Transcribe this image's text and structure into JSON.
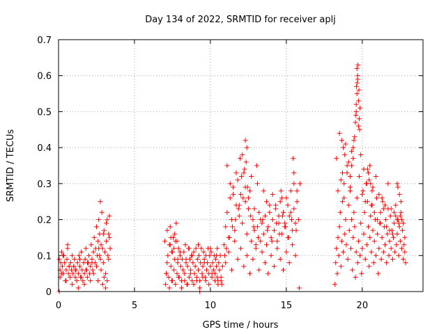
{
  "chart_data": {
    "type": "scatter",
    "title": "Day 134 of 2022, SRMTID for receiver aplj",
    "xlabel": "GPS time / hours",
    "ylabel": "SRMTID / TECUs",
    "xlim": [
      0,
      24
    ],
    "ylim": [
      0,
      0.7
    ],
    "xticks": [
      0,
      5,
      10,
      15,
      20
    ],
    "xtick_labels": [
      "0",
      "5",
      "10",
      "15",
      "20"
    ],
    "yticks": [
      0,
      0.1,
      0.2,
      0.3,
      0.4,
      0.5,
      0.6,
      0.7
    ],
    "ytick_labels": [
      "0",
      "0.1",
      "0.2",
      "0.3",
      "0.4",
      "0.5",
      "0.6",
      "0.7"
    ],
    "grid": true,
    "marker": "+",
    "color": "#ff0000",
    "series": [
      {
        "name": "SRMTID",
        "x": [
          0.05,
          0.1,
          0.15,
          0.2,
          0.25,
          0.3,
          0.35,
          0.4,
          0.45,
          0.5,
          0.55,
          0.6,
          0.65,
          0.7,
          0.75,
          0.8,
          0.85,
          0.9,
          0.95,
          1.0,
          1.05,
          1.1,
          1.15,
          1.2,
          1.25,
          1.3,
          1.35,
          1.4,
          1.45,
          1.5,
          1.55,
          1.6,
          1.65,
          1.7,
          1.75,
          1.8,
          1.85,
          1.9,
          1.95,
          2.0,
          2.05,
          2.1,
          2.15,
          2.2,
          2.25,
          2.3,
          2.35,
          2.4,
          2.45,
          2.5,
          2.55,
          2.6,
          2.65,
          2.7,
          2.75,
          2.8,
          2.85,
          2.9,
          2.95,
          3.0,
          3.05,
          3.1,
          3.15,
          3.2,
          3.25,
          3.3,
          3.35,
          3.4,
          0.1,
          0.3,
          0.5,
          0.7,
          0.9,
          1.1,
          1.3,
          1.5,
          1.7,
          1.9,
          2.1,
          2.3,
          2.5,
          2.6,
          2.7,
          2.8,
          2.9,
          3.0,
          3.1,
          3.2,
          3.3,
          0.2,
          0.6,
          1.0,
          1.4,
          1.8,
          2.2,
          2.65,
          2.75,
          2.95,
          3.15,
          3.35,
          7.0,
          7.05,
          7.1,
          7.15,
          7.2,
          7.25,
          7.3,
          7.35,
          7.4,
          7.45,
          7.5,
          7.55,
          7.6,
          7.65,
          7.7,
          7.75,
          7.8,
          7.85,
          7.9,
          7.95,
          8.0,
          8.05,
          8.1,
          8.15,
          8.2,
          8.25,
          8.3,
          8.35,
          8.4,
          8.45,
          8.5,
          8.55,
          8.6,
          8.65,
          8.7,
          8.75,
          8.8,
          8.85,
          8.9,
          8.95,
          9.0,
          9.05,
          9.1,
          9.15,
          9.2,
          9.25,
          9.3,
          9.35,
          9.4,
          9.45,
          9.5,
          9.55,
          9.6,
          9.65,
          9.7,
          9.75,
          9.8,
          9.85,
          9.9,
          9.95,
          10.0,
          10.05,
          10.1,
          10.15,
          10.2,
          10.25,
          10.3,
          10.35,
          10.4,
          10.45,
          10.5,
          10.55,
          10.6,
          10.65,
          10.7,
          10.75,
          10.8,
          7.1,
          7.3,
          7.5,
          7.7,
          7.9,
          8.1,
          8.3,
          8.5,
          8.7,
          8.9,
          9.1,
          9.3,
          9.5,
          9.7,
          9.9,
          10.1,
          10.3,
          10.5,
          10.7,
          7.4,
          7.6,
          7.8,
          8.0,
          8.4,
          8.8,
          9.2,
          9.6,
          10.0,
          10.4,
          7.15,
          7.35,
          7.45,
          7.65,
          7.85,
          8.6,
          10.9,
          11.0,
          11.1,
          11.2,
          11.3,
          11.4,
          11.5,
          11.6,
          11.7,
          11.8,
          11.9,
          12.0,
          12.1,
          12.2,
          12.3,
          12.4,
          12.5,
          12.6,
          12.7,
          12.8,
          12.9,
          13.0,
          13.1,
          13.2,
          13.3,
          13.4,
          13.5,
          13.6,
          13.7,
          13.8,
          13.9,
          14.0,
          14.1,
          14.2,
          14.3,
          14.4,
          14.5,
          14.6,
          14.7,
          14.8,
          14.9,
          15.0,
          15.1,
          15.2,
          15.3,
          15.4,
          15.5,
          15.6,
          15.7,
          15.8,
          11.0,
          11.2,
          11.4,
          11.6,
          11.8,
          12.0,
          12.2,
          12.4,
          12.6,
          12.8,
          13.0,
          13.2,
          13.4,
          13.6,
          13.8,
          14.0,
          14.2,
          14.4,
          14.6,
          14.8,
          15.0,
          15.2,
          15.4,
          15.6,
          11.1,
          11.3,
          11.5,
          11.7,
          11.9,
          12.1,
          12.3,
          12.5,
          12.7,
          12.9,
          13.1,
          13.3,
          13.5,
          13.7,
          13.9,
          14.1,
          14.3,
          14.5,
          14.7,
          14.9,
          15.1,
          15.3,
          15.5,
          15.7,
          12.3,
          12.35,
          12.4,
          12.25,
          11.95,
          12.05,
          13.05,
          14.65,
          15.45,
          15.5,
          15.85,
          15.9,
          10.95,
          11.05,
          11.25,
          11.45,
          11.65,
          11.85,
          12.15,
          12.45,
          12.65,
          12.85,
          13.15,
          13.45,
          13.75,
          14.05,
          14.35,
          14.55,
          14.75,
          14.95,
          15.15,
          15.35,
          15.65,
          18.2,
          18.25,
          18.3,
          18.35,
          18.4,
          18.45,
          18.5,
          18.55,
          18.6,
          18.65,
          18.7,
          18.75,
          18.8,
          18.85,
          18.9,
          18.95,
          19.0,
          19.05,
          19.1,
          19.15,
          19.2,
          19.25,
          19.3,
          19.35,
          19.4,
          19.45,
          19.5,
          19.55,
          19.6,
          19.65,
          19.7,
          19.75,
          19.8,
          19.85,
          19.9,
          19.95,
          20.0,
          20.05,
          20.1,
          20.15,
          20.2,
          20.25,
          20.3,
          20.35,
          20.4,
          20.45,
          20.5,
          20.55,
          20.6,
          20.65,
          20.7,
          20.75,
          20.8,
          20.85,
          20.9,
          20.95,
          21.0,
          21.05,
          21.1,
          21.15,
          21.2,
          21.25,
          21.3,
          21.35,
          21.4,
          21.45,
          21.5,
          21.55,
          21.6,
          21.65,
          21.7,
          21.75,
          21.8,
          21.85,
          21.9,
          21.95,
          22.0,
          22.05,
          22.1,
          22.15,
          22.2,
          22.25,
          22.3,
          22.35,
          22.4,
          22.45,
          22.5,
          22.55,
          22.6,
          22.65,
          22.7,
          22.75,
          22.8,
          22.85,
          18.3,
          18.5,
          18.7,
          18.9,
          19.1,
          19.3,
          19.5,
          19.6,
          19.65,
          19.7,
          19.75,
          19.8,
          19.55,
          19.45,
          19.85,
          19.9,
          20.1,
          20.3,
          20.5,
          20.7,
          20.9,
          21.1,
          21.3,
          21.5,
          21.7,
          21.9,
          22.1,
          22.3,
          22.5,
          22.7,
          18.4,
          18.6,
          18.8,
          19.0,
          19.2,
          19.4,
          19.62,
          19.68,
          19.72,
          19.78,
          20.0,
          20.2,
          20.4,
          20.6,
          20.8,
          21.0,
          21.2,
          21.4,
          21.6,
          21.8,
          22.0,
          22.2,
          22.4,
          22.6,
          22.8,
          19.6,
          19.65,
          19.7,
          19.58,
          19.75,
          19.82,
          19.4,
          19.3,
          19.2,
          18.65,
          18.75,
          18.85,
          20.55,
          20.65,
          20.45,
          20.35,
          22.3,
          22.35,
          22.45,
          22.55,
          0.05,
          9.3,
          10.45
        ],
        "y": [
          0.09,
          0.06,
          0.08,
          0.11,
          0.07,
          0.05,
          0.1,
          0.08,
          0.03,
          0.06,
          0.09,
          0.12,
          0.05,
          0.07,
          0.04,
          0.08,
          0.06,
          0.1,
          0.05,
          0.07,
          0.09,
          0.04,
          0.06,
          0.03,
          0.08,
          0.05,
          0.1,
          0.07,
          0.04,
          0.11,
          0.06,
          0.03,
          0.08,
          0.05,
          0.09,
          0.12,
          0.06,
          0.04,
          0.08,
          0.1,
          0.05,
          0.07,
          0.13,
          0.09,
          0.06,
          0.11,
          0.15,
          0.08,
          0.12,
          0.18,
          0.1,
          0.14,
          0.2,
          0.16,
          0.09,
          0.13,
          0.22,
          0.12,
          0.08,
          0.17,
          0.11,
          0.05,
          0.14,
          0.2,
          0.1,
          0.16,
          0.21,
          0.12,
          0.04,
          0.1,
          0.03,
          0.07,
          0.02,
          0.06,
          0.01,
          0.04,
          0.02,
          0.08,
          0.03,
          0.05,
          0.07,
          0.03,
          0.1,
          0.06,
          0.02,
          0.04,
          0.01,
          0.03,
          0.09,
          0.05,
          0.13,
          0.07,
          0.09,
          0.06,
          0.08,
          0.12,
          0.25,
          0.16,
          0.19,
          0.15,
          0.14,
          0.02,
          0.05,
          0.08,
          0.1,
          0.04,
          0.13,
          0.18,
          0.07,
          0.03,
          0.11,
          0.15,
          0.06,
          0.09,
          0.14,
          0.19,
          0.05,
          0.08,
          0.12,
          0.04,
          0.1,
          0.07,
          0.03,
          0.09,
          0.06,
          0.11,
          0.05,
          0.13,
          0.08,
          0.02,
          0.07,
          0.12,
          0.04,
          0.09,
          0.06,
          0.1,
          0.03,
          0.08,
          0.11,
          0.05,
          0.07,
          0.12,
          0.04,
          0.09,
          0.06,
          0.1,
          0.03,
          0.08,
          0.12,
          0.05,
          0.07,
          0.11,
          0.09,
          0.04,
          0.1,
          0.06,
          0.08,
          0.12,
          0.05,
          0.1,
          0.07,
          0.11,
          0.04,
          0.08,
          0.06,
          0.1,
          0.05,
          0.09,
          0.07,
          0.12,
          0.03,
          0.08,
          0.06,
          0.1,
          0.04,
          0.02,
          0.07,
          0.05,
          0.01,
          0.03,
          0.02,
          0.04,
          0.01,
          0.03,
          0.02,
          0.05,
          0.02,
          0.03,
          0.01,
          0.04,
          0.03,
          0.02,
          0.05,
          0.03,
          0.02,
          0.03,
          0.15,
          0.12,
          0.14,
          0.11,
          0.09,
          0.1,
          0.13,
          0.08,
          0.12,
          0.1,
          0.17,
          0.13,
          0.11,
          0.16,
          0.09,
          0.12,
          0.13,
          0.18,
          0.22,
          0.15,
          0.26,
          0.2,
          0.29,
          0.17,
          0.24,
          0.31,
          0.21,
          0.27,
          0.19,
          0.33,
          0.25,
          0.16,
          0.23,
          0.28,
          0.14,
          0.2,
          0.17,
          0.12,
          0.18,
          0.22,
          0.14,
          0.19,
          0.16,
          0.21,
          0.13,
          0.18,
          0.24,
          0.15,
          0.2,
          0.17,
          0.23,
          0.14,
          0.19,
          0.25,
          0.16,
          0.22,
          0.18,
          0.26,
          0.15,
          0.21,
          0.28,
          0.17,
          0.23,
          0.19,
          0.25,
          0.2,
          0.08,
          0.11,
          0.06,
          0.14,
          0.09,
          0.12,
          0.07,
          0.1,
          0.05,
          0.09,
          0.13,
          0.06,
          0.11,
          0.08,
          0.05,
          0.1,
          0.07,
          0.12,
          0.09,
          0.06,
          0.11,
          0.08,
          0.13,
          0.1,
          0.35,
          0.3,
          0.27,
          0.33,
          0.24,
          0.38,
          0.29,
          0.26,
          0.32,
          0.23,
          0.3,
          0.2,
          0.28,
          0.25,
          0.22,
          0.27,
          0.24,
          0.21,
          0.26,
          0.19,
          0.24,
          0.22,
          0.3,
          0.28,
          0.42,
          0.36,
          0.4,
          0.34,
          0.37,
          0.32,
          0.35,
          0.28,
          0.37,
          0.33,
          0.01,
          0.3,
          0.1,
          0.12,
          0.15,
          0.18,
          0.2,
          0.23,
          0.26,
          0.29,
          0.21,
          0.18,
          0.15,
          0.2,
          0.17,
          0.14,
          0.19,
          0.16,
          0.21,
          0.18,
          0.15,
          0.2,
          0.17,
          0.02,
          0.08,
          0.12,
          0.05,
          0.15,
          0.1,
          0.18,
          0.22,
          0.07,
          0.14,
          0.25,
          0.11,
          0.3,
          0.16,
          0.2,
          0.13,
          0.35,
          0.09,
          0.24,
          0.17,
          0.28,
          0.12,
          0.2,
          0.06,
          0.15,
          0.22,
          0.18,
          0.04,
          0.11,
          0.26,
          0.08,
          0.14,
          0.32,
          0.1,
          0.19,
          0.05,
          0.12,
          0.28,
          0.16,
          0.22,
          0.09,
          0.3,
          0.13,
          0.25,
          0.18,
          0.07,
          0.15,
          0.21,
          0.11,
          0.24,
          0.17,
          0.08,
          0.14,
          0.2,
          0.1,
          0.26,
          0.16,
          0.05,
          0.12,
          0.19,
          0.22,
          0.09,
          0.15,
          0.25,
          0.11,
          0.18,
          0.13,
          0.2,
          0.08,
          0.16,
          0.23,
          0.1,
          0.14,
          0.21,
          0.12,
          0.17,
          0.09,
          0.15,
          0.19,
          0.11,
          0.24,
          0.13,
          0.16,
          0.2,
          0.1,
          0.18,
          0.14,
          0.22,
          0.12,
          0.17,
          0.09,
          0.13,
          0.11,
          0.08,
          0.37,
          0.44,
          0.33,
          0.41,
          0.36,
          0.39,
          0.43,
          0.5,
          0.55,
          0.6,
          0.53,
          0.48,
          0.47,
          0.42,
          0.51,
          0.38,
          0.34,
          0.3,
          0.35,
          0.29,
          0.32,
          0.27,
          0.26,
          0.24,
          0.3,
          0.23,
          0.22,
          0.2,
          0.21,
          0.19,
          0.28,
          0.31,
          0.26,
          0.33,
          0.29,
          0.4,
          0.57,
          0.58,
          0.63,
          0.56,
          0.27,
          0.25,
          0.33,
          0.24,
          0.22,
          0.2,
          0.19,
          0.23,
          0.18,
          0.17,
          0.16,
          0.21,
          0.19,
          0.2,
          0.15,
          0.52,
          0.62,
          0.59,
          0.49,
          0.46,
          0.45,
          0.37,
          0.35,
          0.32,
          0.42,
          0.4,
          0.38,
          0.3,
          0.28,
          0.31,
          0.34,
          0.3,
          0.29,
          0.27,
          0.25,
          0.0,
          0.0,
          0.04
        ]
      }
    ]
  }
}
